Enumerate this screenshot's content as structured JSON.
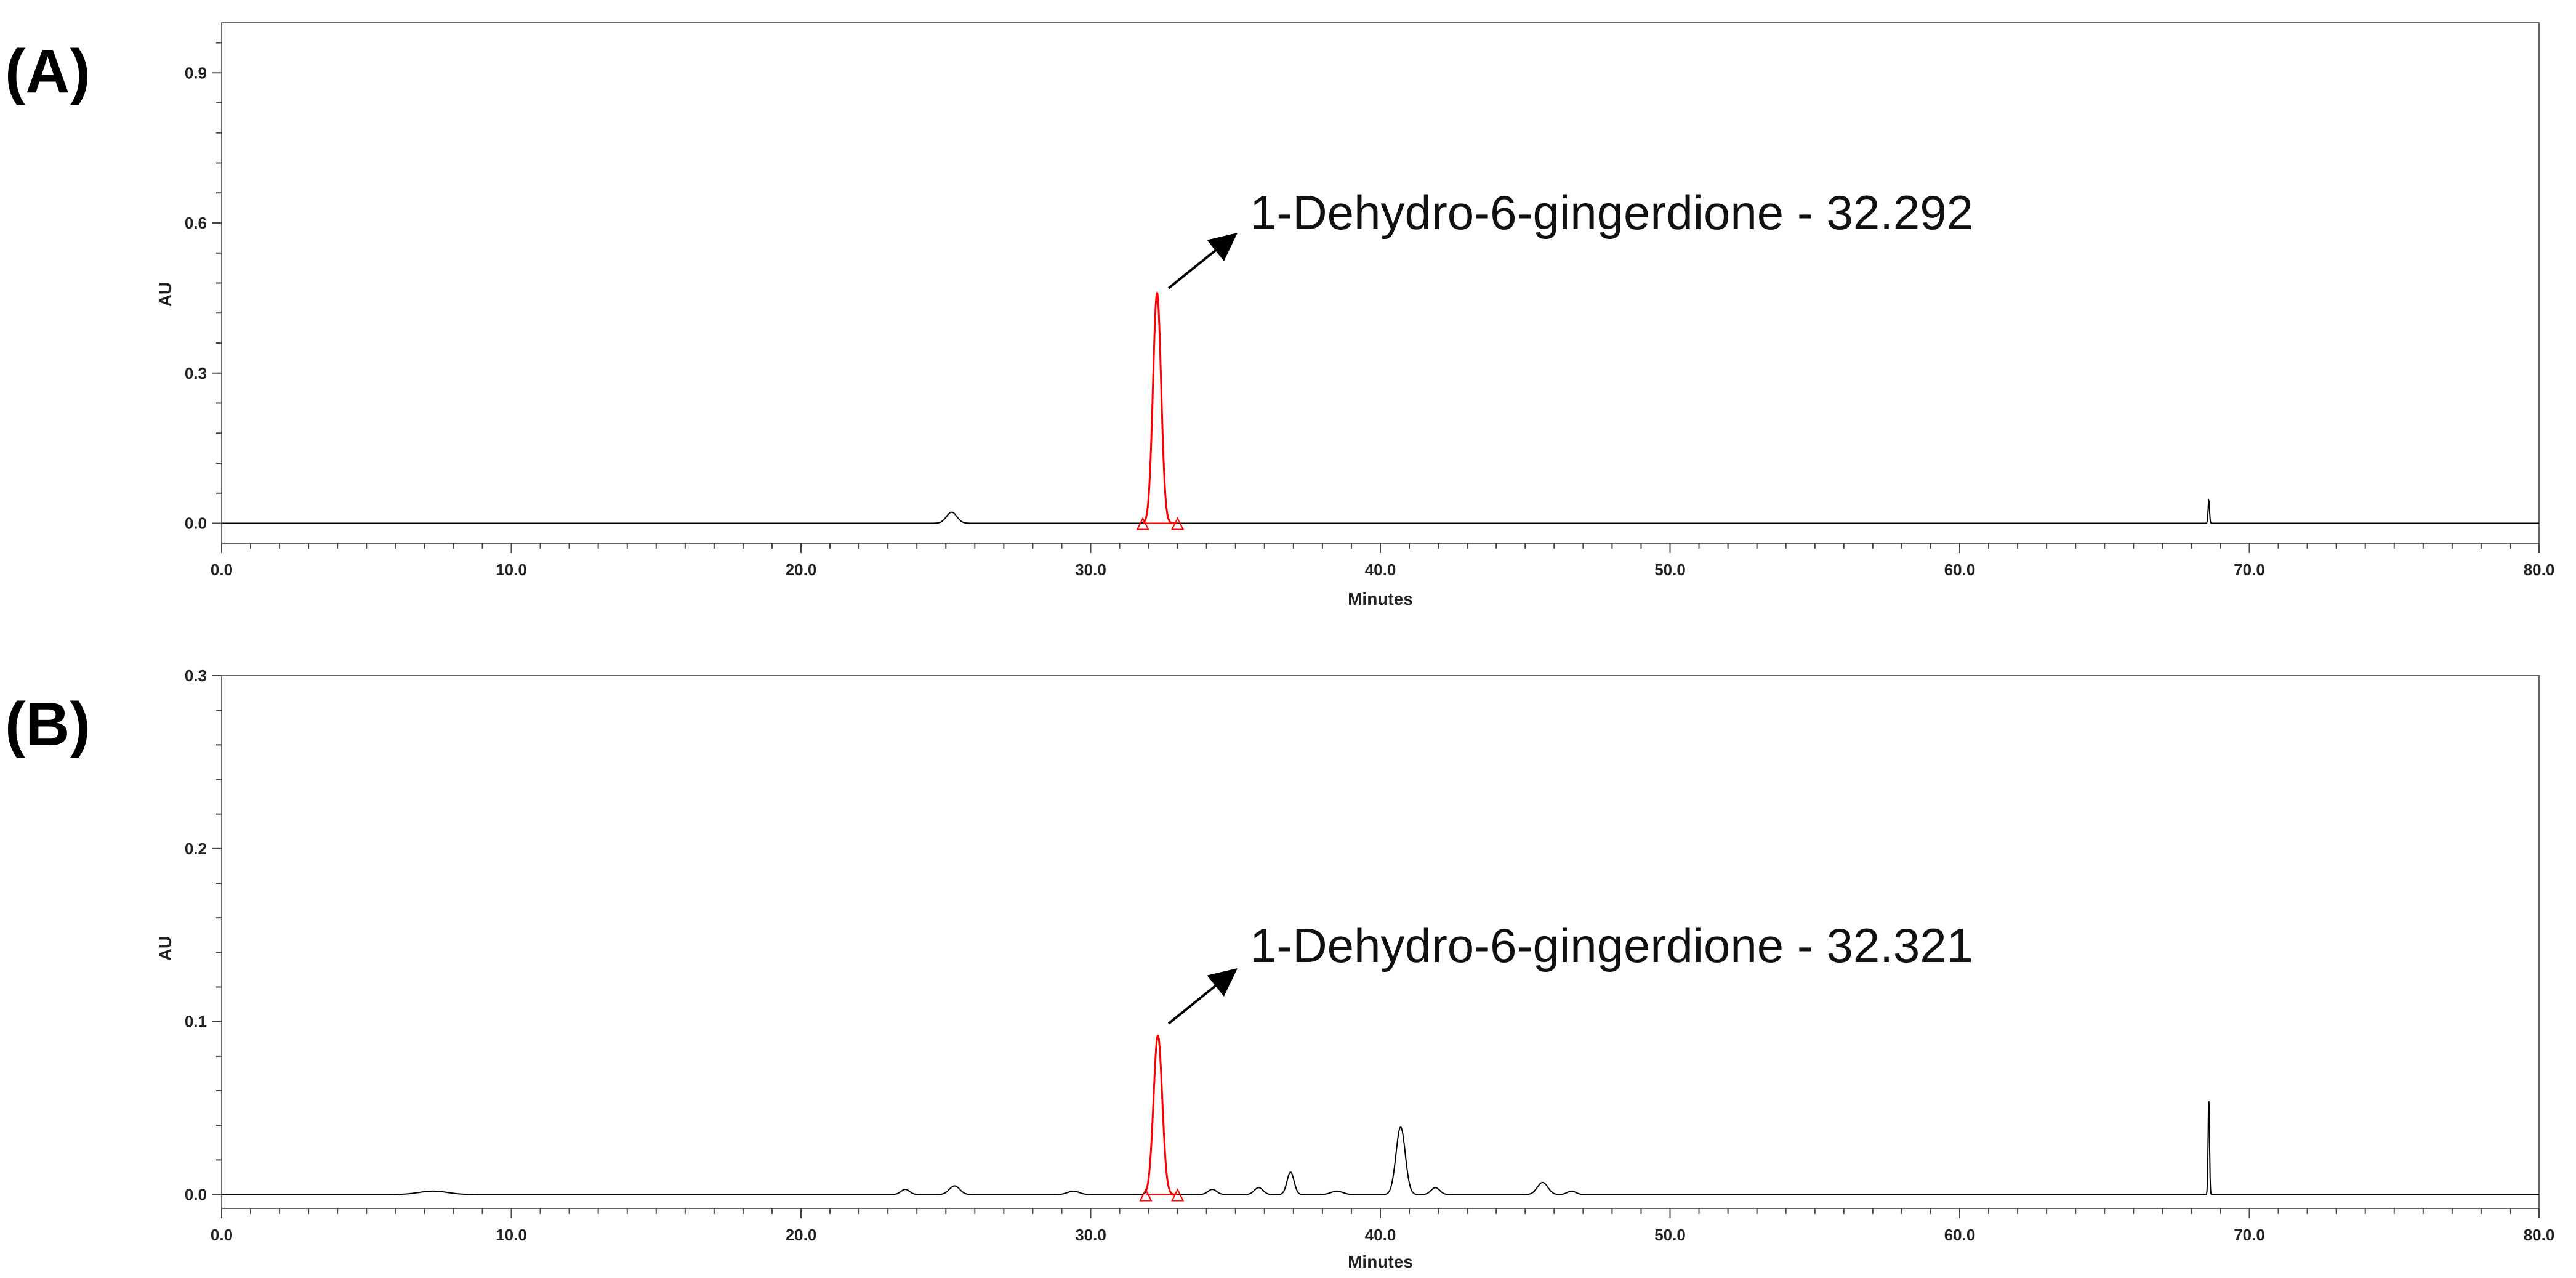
{
  "chart_data": [
    {
      "type": "line",
      "panel_label": "(A)",
      "xlabel": "Minutes",
      "ylabel": "AU",
      "xlim": [
        0,
        80
      ],
      "ylim": [
        -0.04,
        1.0
      ],
      "x_ticks": [
        "0.0",
        "10.0",
        "20.0",
        "30.0",
        "40.0",
        "50.0",
        "60.0",
        "70.0",
        "80.0"
      ],
      "y_ticks": [
        "0.0",
        "0.3",
        "0.6",
        "0.9"
      ],
      "y_tick_values": [
        0.0,
        0.3,
        0.6,
        0.9
      ],
      "grid": false,
      "baseline": 0.0,
      "trace_color": "#000000",
      "highlight_color": "#ff0000",
      "peaks": [
        {
          "rt": 25.2,
          "height": 0.022,
          "width": 0.18,
          "highlight": false
        },
        {
          "rt": 32.292,
          "height": 0.46,
          "width": 0.14,
          "highlight": true
        },
        {
          "rt": 68.6,
          "height": 0.045,
          "width": 0.025,
          "highlight": false
        }
      ],
      "highlight_range": [
        31.8,
        33.0
      ],
      "annotation": {
        "text": "1-Dehydro-6-gingerdione - 32.292",
        "peak_rt": 32.292
      }
    },
    {
      "type": "line",
      "panel_label": "(B)",
      "xlabel": "Minutes",
      "ylabel": "AU",
      "xlim": [
        0,
        80
      ],
      "ylim": [
        -0.008,
        0.3
      ],
      "x_ticks": [
        "0.0",
        "10.0",
        "20.0",
        "30.0",
        "40.0",
        "50.0",
        "60.0",
        "70.0",
        "80.0"
      ],
      "y_ticks": [
        "0.0",
        "0.1",
        "0.2",
        "0.3"
      ],
      "y_tick_values": [
        0.0,
        0.1,
        0.2,
        0.3
      ],
      "grid": false,
      "baseline": 0.0,
      "trace_color": "#000000",
      "highlight_color": "#ff0000",
      "peaks": [
        {
          "rt": 7.3,
          "height": 0.002,
          "width": 0.5,
          "highlight": false
        },
        {
          "rt": 23.6,
          "height": 0.003,
          "width": 0.15,
          "highlight": false
        },
        {
          "rt": 25.3,
          "height": 0.005,
          "width": 0.18,
          "highlight": false
        },
        {
          "rt": 29.4,
          "height": 0.002,
          "width": 0.2,
          "highlight": false
        },
        {
          "rt": 32.321,
          "height": 0.092,
          "width": 0.15,
          "highlight": true
        },
        {
          "rt": 34.2,
          "height": 0.003,
          "width": 0.15,
          "highlight": false
        },
        {
          "rt": 35.8,
          "height": 0.004,
          "width": 0.15,
          "highlight": false
        },
        {
          "rt": 36.9,
          "height": 0.013,
          "width": 0.12,
          "highlight": false
        },
        {
          "rt": 38.5,
          "height": 0.002,
          "width": 0.2,
          "highlight": false
        },
        {
          "rt": 40.7,
          "height": 0.039,
          "width": 0.16,
          "highlight": false
        },
        {
          "rt": 41.9,
          "height": 0.004,
          "width": 0.15,
          "highlight": false
        },
        {
          "rt": 45.6,
          "height": 0.007,
          "width": 0.18,
          "highlight": false
        },
        {
          "rt": 46.6,
          "height": 0.002,
          "width": 0.15,
          "highlight": false
        },
        {
          "rt": 68.6,
          "height": 0.054,
          "width": 0.025,
          "highlight": false
        }
      ],
      "highlight_range": [
        31.9,
        33.0
      ],
      "annotation": {
        "text": "1-Dehydro-6-gingerdione - 32.321",
        "peak_rt": 32.321
      }
    }
  ]
}
